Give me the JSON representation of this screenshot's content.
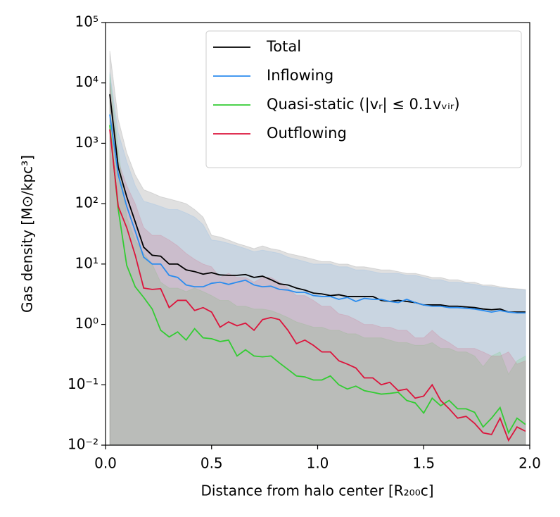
{
  "chart_data": {
    "type": "line",
    "xlabel": "Distance from halo center [R₂₀₀c]",
    "ylabel": "Gas density [M⊙/kpc³]",
    "log_y": true,
    "legend": "upper right",
    "xlim": [
      0,
      2
    ],
    "ylim": [
      0.01,
      100000
    ],
    "xticks": [
      {
        "value": 0,
        "label": "0.0"
      },
      0.5,
      {
        "value": 1,
        "label": "1.0"
      },
      1.5,
      {
        "value": 2,
        "label": "2.0"
      }
    ],
    "yticks": [
      {
        "value": 0.01,
        "label": "10⁻²"
      },
      {
        "value": 0.1,
        "label": "10⁻¹"
      },
      {
        "value": 1,
        "label": "10⁰"
      },
      {
        "value": 10,
        "label": "10¹"
      },
      {
        "value": 100,
        "label": "10²"
      },
      {
        "value": 1000,
        "label": "10³"
      },
      {
        "value": 10000,
        "label": "10⁴"
      },
      {
        "value": 100000,
        "label": "10⁵"
      }
    ],
    "x": [
      0.02,
      0.06,
      0.1,
      0.14,
      0.18,
      0.22,
      0.26,
      0.3,
      0.34,
      0.38,
      0.42,
      0.46,
      0.5,
      0.54,
      0.58,
      0.62,
      0.66,
      0.7,
      0.74,
      0.78,
      0.82,
      0.86,
      0.9,
      0.94,
      0.98,
      1.02,
      1.06,
      1.1,
      1.14,
      1.18,
      1.22,
      1.26,
      1.3,
      1.34,
      1.38,
      1.42,
      1.46,
      1.5,
      1.54,
      1.58,
      1.62,
      1.66,
      1.7,
      1.74,
      1.78,
      1.82,
      1.86,
      1.9,
      1.94,
      1.98
    ],
    "series": [
      {
        "name": "Total",
        "color": "#000000",
        "values": [
          6500,
          400,
          130,
          50,
          19,
          14,
          13.5,
          10,
          10,
          8,
          7.5,
          6.8,
          7.2,
          6.6,
          6.5,
          6.5,
          6.7,
          6.0,
          6.3,
          5.5,
          4.7,
          4.5,
          4.0,
          3.7,
          3.3,
          3.2,
          3.0,
          3.1,
          2.9,
          2.9,
          2.9,
          2.9,
          2.5,
          2.4,
          2.5,
          2.4,
          2.3,
          2.1,
          2.1,
          2.1,
          2.0,
          2.0,
          1.95,
          1.9,
          1.8,
          1.75,
          1.8,
          1.6,
          1.6,
          1.6
        ],
        "band_upper": [
          34000,
          2500,
          700,
          300,
          170,
          150,
          130,
          120,
          110,
          100,
          80,
          60,
          30,
          28,
          25,
          22,
          20,
          18,
          20,
          18,
          17,
          15,
          14,
          13,
          12,
          11,
          11,
          10,
          10,
          9,
          9,
          8.5,
          8,
          8,
          7.5,
          7,
          7,
          6.5,
          6,
          6,
          5.5,
          5.5,
          5,
          5,
          4.5,
          4.5,
          4.2,
          4,
          3.9,
          3.8
        ]
      },
      {
        "name": "Inflowing",
        "color": "#2b8cee",
        "values": [
          3000,
          300,
          90,
          35,
          13,
          10,
          10,
          6.5,
          6,
          4.5,
          4.2,
          4.2,
          4.8,
          5.0,
          4.6,
          5.0,
          5.4,
          4.5,
          4.2,
          4.3,
          3.8,
          3.7,
          3.4,
          3.4,
          3.0,
          2.9,
          2.9,
          2.6,
          2.8,
          2.4,
          2.7,
          2.6,
          2.6,
          2.4,
          2.3,
          2.6,
          2.3,
          2.1,
          2.0,
          2.0,
          1.9,
          1.9,
          1.85,
          1.8,
          1.7,
          1.6,
          1.7,
          1.6,
          1.55,
          1.55
        ],
        "band_upper": [
          15000,
          1500,
          500,
          200,
          110,
          100,
          90,
          80,
          80,
          70,
          60,
          45,
          25,
          24,
          22,
          20,
          18,
          16,
          17,
          16,
          15,
          13,
          12,
          11,
          10,
          10,
          10,
          9,
          9,
          8,
          8,
          7.5,
          7,
          7,
          7,
          6.5,
          6.5,
          6,
          5.5,
          5.5,
          5,
          5,
          4.8,
          4.6,
          4.3,
          4.2,
          4,
          3.9,
          3.8,
          3.7
        ]
      },
      {
        "name": "Quasi-static (|vᵣ| ≤ 0.1vᵥᵢᵣ)",
        "color": "#33cc33",
        "values": [
          2000,
          80,
          9.5,
          4.2,
          2.8,
          1.8,
          0.8,
          0.62,
          0.75,
          0.55,
          0.85,
          0.6,
          0.58,
          0.52,
          0.55,
          0.3,
          0.38,
          0.3,
          0.29,
          0.3,
          0.23,
          0.18,
          0.14,
          0.135,
          0.12,
          0.12,
          0.14,
          0.1,
          0.085,
          0.095,
          0.08,
          0.075,
          0.07,
          0.072,
          0.075,
          0.055,
          0.05,
          0.034,
          0.06,
          0.045,
          0.055,
          0.04,
          0.04,
          0.035,
          0.02,
          0.028,
          0.042,
          0.016,
          0.028,
          0.022
        ],
        "band_upper": [
          14000,
          800,
          60,
          25,
          15,
          10,
          5,
          4,
          4,
          3.5,
          4,
          3.5,
          3,
          2.5,
          2.5,
          2,
          2,
          1.8,
          1.8,
          1.7,
          1.5,
          1.3,
          1.1,
          1,
          0.9,
          0.9,
          0.8,
          0.8,
          0.7,
          0.7,
          0.6,
          0.6,
          0.6,
          0.55,
          0.5,
          0.5,
          0.45,
          0.45,
          0.5,
          0.4,
          0.4,
          0.35,
          0.35,
          0.3,
          0.2,
          0.3,
          0.35,
          0.15,
          0.25,
          0.3
        ]
      },
      {
        "name": "Outflowing",
        "color": "#dc143c",
        "values": [
          1700,
          90,
          40,
          14,
          4,
          3.8,
          3.9,
          1.9,
          2.5,
          2.5,
          1.7,
          1.9,
          1.6,
          0.9,
          1.1,
          0.95,
          1.05,
          0.8,
          1.2,
          1.3,
          1.2,
          0.8,
          0.48,
          0.55,
          0.45,
          0.35,
          0.35,
          0.25,
          0.22,
          0.19,
          0.13,
          0.13,
          0.1,
          0.11,
          0.08,
          0.085,
          0.06,
          0.065,
          0.1,
          0.055,
          0.04,
          0.028,
          0.03,
          0.023,
          0.016,
          0.015,
          0.028,
          0.012,
          0.02,
          0.017
        ],
        "band_upper": [
          10000,
          500,
          200,
          100,
          40,
          30,
          30,
          25,
          20,
          15,
          12,
          10,
          9,
          6,
          7,
          6,
          6,
          5,
          6,
          6,
          5,
          4,
          3,
          3,
          2.5,
          2,
          2,
          1.5,
          1.4,
          1.2,
          1,
          1,
          0.9,
          0.9,
          0.8,
          0.8,
          0.6,
          0.6,
          0.8,
          0.6,
          0.5,
          0.4,
          0.4,
          0.4,
          0.35,
          0.3,
          0.3,
          0.35,
          0.22,
          0.25
        ]
      }
    ]
  }
}
